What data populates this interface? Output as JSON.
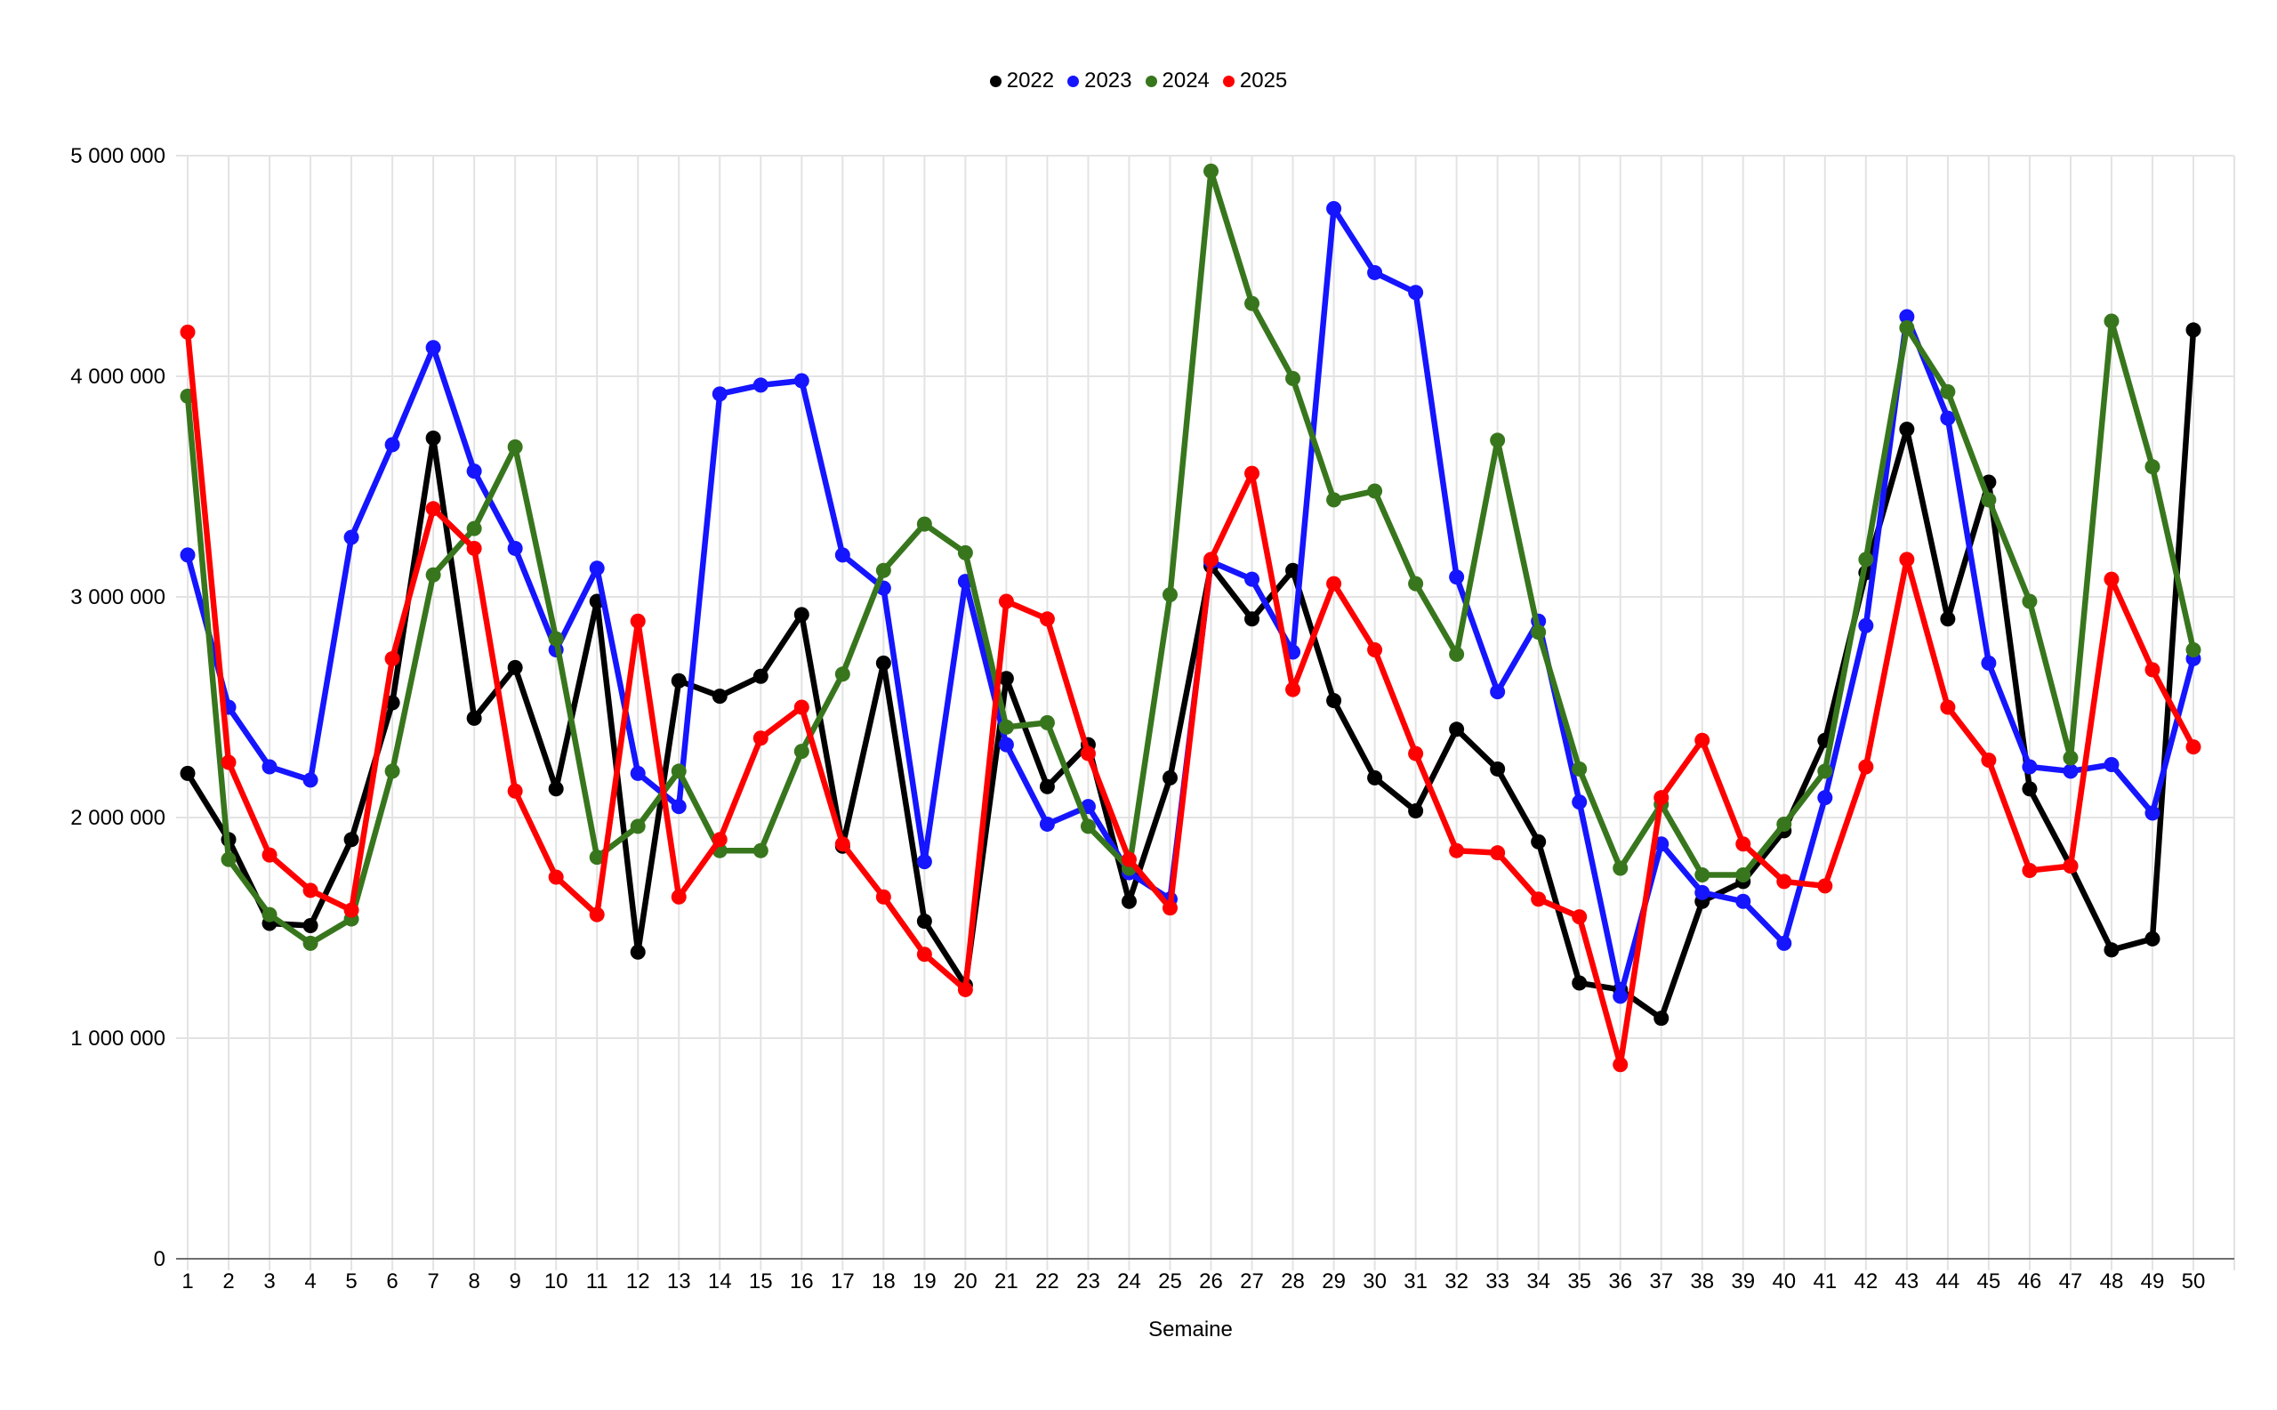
{
  "x_axis_title": "Semaine",
  "axes": {
    "y_ticks": [
      {
        "label": "5 000 000",
        "value": 5000000
      },
      {
        "label": "4 000 000",
        "value": 4000000
      },
      {
        "label": "3 000 000",
        "value": 3000000
      },
      {
        "label": "2 000 000",
        "value": 2000000
      },
      {
        "label": "1 000 000",
        "value": 1000000
      },
      {
        "label": "0",
        "value": 0
      }
    ],
    "grid_color": "#e3e3e3",
    "axis_line_color": "#6e6e6e",
    "label_color": "#000000"
  },
  "chart_data": {
    "type": "line",
    "title": "",
    "xlabel": "Semaine",
    "ylabel": "",
    "ylim": [
      0,
      5000000
    ],
    "grid": true,
    "legend_position": "top-center",
    "x": [
      1,
      2,
      3,
      4,
      5,
      6,
      7,
      8,
      9,
      10,
      11,
      12,
      13,
      14,
      15,
      16,
      17,
      18,
      19,
      20,
      21,
      22,
      23,
      24,
      25,
      26,
      27,
      28,
      29,
      30,
      31,
      32,
      33,
      34,
      35,
      36,
      37,
      38,
      39,
      40,
      41,
      42,
      43,
      44,
      45,
      46,
      47,
      48,
      49,
      50
    ],
    "series": [
      {
        "name": "2022",
        "color": "#000000",
        "values": [
          2200000,
          1900000,
          1520000,
          1510000,
          1900000,
          2520000,
          3720000,
          2450000,
          2680000,
          2130000,
          2980000,
          1390000,
          2620000,
          2550000,
          2640000,
          2920000,
          1870000,
          2700000,
          1530000,
          1240000,
          2630000,
          2140000,
          2330000,
          1620000,
          2180000,
          3140000,
          2900000,
          3120000,
          2530000,
          2180000,
          2030000,
          2400000,
          2220000,
          1890000,
          1250000,
          1220000,
          1090000,
          1620000,
          1710000,
          1940000,
          2350000,
          3110000,
          3760000,
          2900000,
          3520000,
          2130000,
          1780000,
          1400000,
          1450000,
          4210000
        ]
      },
      {
        "name": "2023",
        "color": "#1515ff",
        "values": [
          3190000,
          2500000,
          2230000,
          2170000,
          3270000,
          3690000,
          4130000,
          3570000,
          3220000,
          2760000,
          3130000,
          2200000,
          2050000,
          3920000,
          3960000,
          3980000,
          3190000,
          3040000,
          1800000,
          3070000,
          2330000,
          1970000,
          2050000,
          1750000,
          1630000,
          3160000,
          3080000,
          2750000,
          4760000,
          4470000,
          4380000,
          3090000,
          2570000,
          2890000,
          2070000,
          1190000,
          1880000,
          1660000,
          1620000,
          1430000,
          2090000,
          2870000,
          4270000,
          3810000,
          2700000,
          2230000,
          2210000,
          2240000,
          2020000,
          2720000
        ]
      },
      {
        "name": "2024",
        "color": "#38761d",
        "values": [
          3910000,
          1810000,
          1560000,
          1430000,
          1540000,
          2210000,
          3100000,
          3310000,
          3680000,
          2810000,
          1820000,
          1960000,
          2210000,
          1850000,
          1850000,
          2300000,
          2650000,
          3120000,
          3330000,
          3200000,
          2410000,
          2430000,
          1960000,
          1770000,
          3010000,
          4930000,
          4330000,
          3990000,
          3440000,
          3480000,
          3060000,
          2740000,
          3710000,
          2840000,
          2220000,
          1770000,
          2060000,
          1740000,
          1740000,
          1970000,
          2210000,
          3170000,
          4220000,
          3930000,
          3440000,
          2980000,
          2270000,
          4250000,
          3590000,
          2760000
        ]
      },
      {
        "name": "2025",
        "color": "#ff0000",
        "values": [
          4200000,
          2250000,
          1830000,
          1670000,
          1580000,
          2720000,
          3400000,
          3220000,
          2120000,
          1730000,
          1560000,
          2890000,
          1640000,
          1900000,
          2360000,
          2500000,
          1880000,
          1640000,
          1380000,
          1220000,
          2980000,
          2900000,
          2290000,
          1810000,
          1590000,
          3170000,
          3560000,
          2580000,
          3060000,
          2760000,
          2290000,
          1850000,
          1840000,
          1630000,
          1550000,
          880000,
          2090000,
          2350000,
          1880000,
          1710000,
          1690000,
          2230000,
          3170000,
          2500000,
          2260000,
          1760000,
          1780000,
          3080000,
          2670000,
          2320000
        ]
      }
    ]
  }
}
